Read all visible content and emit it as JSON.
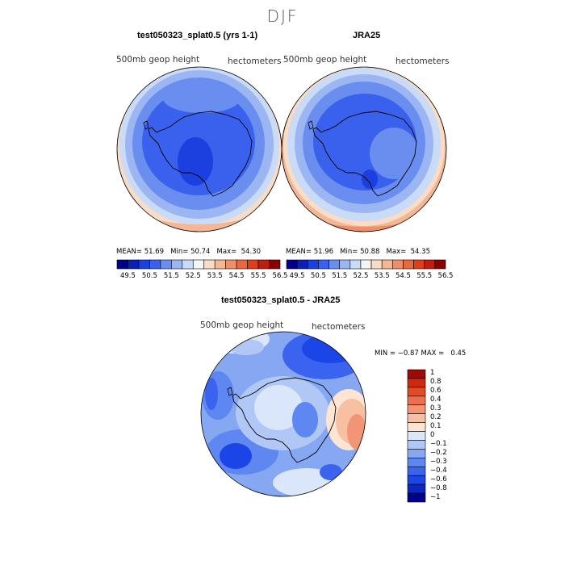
{
  "figure": {
    "season": "DJF",
    "variable": "500mb geop height",
    "units": "hectometers"
  },
  "colors": {
    "bar_palette": [
      "#00008b",
      "#0a1fb8",
      "#1c3fe0",
      "#3a60ee",
      "#6a8ef0",
      "#9bb6f2",
      "#c9dbf6",
      "#f5f5f5",
      "#f8dcc6",
      "#f4b795",
      "#ef8e68",
      "#e86840",
      "#de3f1a",
      "#c11c10",
      "#8b0000"
    ],
    "diff_palette": [
      "#00008b",
      "#0b26c2",
      "#1b45e6",
      "#3a64f0",
      "#5e87f1",
      "#86a8f3",
      "#b1c8f6",
      "#dae6f9",
      "#fce6d3",
      "#f7c0a3",
      "#f29476",
      "#ec6e4c",
      "#e24a22",
      "#cc2a10",
      "#9e0a06"
    ],
    "land_outline": "#000000"
  },
  "chart_data": [
    {
      "type": "heatmap",
      "title": "test050323_splat0.5 (yrs 1-1)",
      "left_label": "500mb geop height",
      "right_label": "hectometers",
      "stats": {
        "mean": "51.69",
        "min": "50.74",
        "max": "54.30"
      },
      "colorbar_ticks": [
        "49.5",
        "50.5",
        "51.5",
        "52.5",
        "53.5",
        "54.5",
        "55.5",
        "56.5"
      ]
    },
    {
      "type": "heatmap",
      "title": "JRA25",
      "left_label": "500mb geop height",
      "right_label": "hectometers",
      "stats": {
        "mean": "51.96",
        "min": "50.88",
        "max": "54.35"
      },
      "colorbar_ticks": [
        "49.5",
        "50.5",
        "51.5",
        "52.5",
        "53.5",
        "54.5",
        "55.5",
        "56.5"
      ]
    },
    {
      "type": "heatmap",
      "title": "test050323_splat0.5 - JRA25",
      "left_label": "500mb geop height",
      "right_label": "hectometers",
      "stats": {
        "min": "−0.87",
        "max": "0.45"
      },
      "colorbar_levels": [
        "1",
        "0.8",
        "0.6",
        "0.4",
        "0.3",
        "0.2",
        "0.1",
        "0",
        "−0.1",
        "−0.2",
        "−0.3",
        "−0.4",
        "−0.6",
        "−0.8",
        "−1"
      ]
    }
  ],
  "text": {
    "mean_lbl": "MEAN=",
    "min_lbl": "Min=",
    "max_lbl": "Max=",
    "diff_min_lbl": "MIN =",
    "diff_max_lbl": "MAX ="
  }
}
